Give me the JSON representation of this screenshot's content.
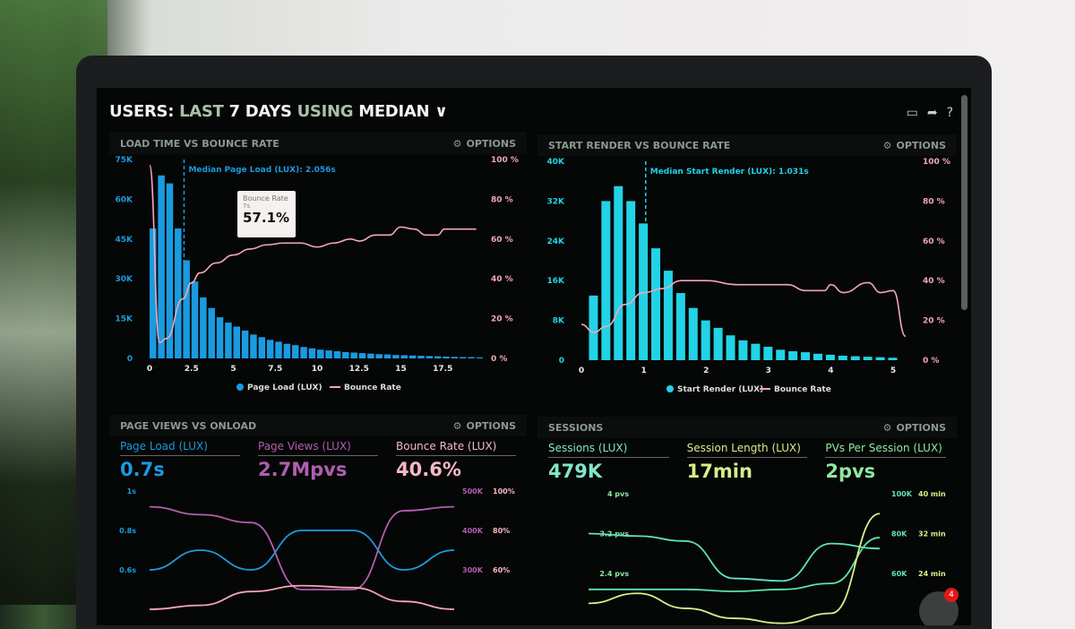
{
  "header": {
    "title_parts": [
      "USERS:",
      "LAST",
      "7 DAYS",
      "USING",
      "MEDIAN"
    ],
    "dropdown_icon": "chevron-down-icon",
    "icons": [
      "monitor-icon",
      "share-icon",
      "help-icon"
    ]
  },
  "options_label": "OPTIONS",
  "colors": {
    "blue": "#1a9be0",
    "cyan": "#22d3e6",
    "pink": "#f2a7b8",
    "purple": "#b05fae",
    "teal": "#5fe3c0",
    "yellow": "#d8ee8a",
    "green": "#8ee8a0"
  },
  "panels": {
    "load": {
      "title": "LOAD TIME VS BOUNCE RATE"
    },
    "render": {
      "title": "START RENDER VS BOUNCE RATE"
    },
    "views": {
      "title": "PAGE VIEWS VS ONLOAD",
      "kpis": [
        {
          "label": "Page Load (LUX)",
          "value": "0.7s"
        },
        {
          "label": "Page Views (LUX)",
          "value": "2.7Mpvs"
        },
        {
          "label": "Bounce Rate (LUX)",
          "value": "40.6%"
        }
      ]
    },
    "sessions": {
      "title": "SESSIONS",
      "kpis": [
        {
          "label": "Sessions (LUX)",
          "value": "479K"
        },
        {
          "label": "Session Length (LUX)",
          "value": "17min"
        },
        {
          "label": "PVs Per Session (LUX)",
          "value": "2pvs"
        }
      ]
    }
  },
  "tooltip": {
    "title": "Bounce Rate",
    "sub": "7s",
    "value": "57.1%"
  },
  "notification_count": "4",
  "chart_data": [
    {
      "type": "bar",
      "name": "load",
      "x": [
        0,
        0.5,
        1,
        1.5,
        2,
        2.5,
        3,
        3.5,
        4,
        4.5,
        5,
        5.5,
        6,
        6.5,
        7,
        7.5,
        8,
        8.5,
        9,
        9.5,
        10,
        10.5,
        11,
        11.5,
        12,
        12.5,
        13,
        13.5,
        14,
        14.5,
        15,
        15.5,
        16,
        16.5,
        17,
        17.5,
        18,
        18.5,
        19,
        19.5
      ],
      "series": [
        {
          "name": "Page Load (LUX)",
          "axis": "left",
          "type": "bar",
          "values": [
            49000,
            69000,
            66000,
            49000,
            37000,
            29000,
            23000,
            19000,
            15500,
            13500,
            12000,
            10500,
            9000,
            8000,
            7000,
            6300,
            5500,
            5000,
            4300,
            3800,
            3300,
            3000,
            2700,
            2400,
            2200,
            2000,
            1800,
            1600,
            1500,
            1300,
            1200,
            1100,
            1000,
            900,
            800,
            700,
            600,
            500,
            500,
            400
          ]
        },
        {
          "name": "Bounce Rate",
          "axis": "right",
          "type": "line",
          "points": [
            [
              0,
              97
            ],
            [
              0.6,
              8
            ],
            [
              1,
              10
            ],
            [
              2,
              30
            ],
            [
              2.5,
              38
            ],
            [
              3,
              43
            ],
            [
              4,
              48
            ],
            [
              5,
              52
            ],
            [
              6,
              55
            ],
            [
              7,
              57.1
            ],
            [
              8,
              58
            ],
            [
              9,
              58
            ],
            [
              10,
              56
            ],
            [
              11,
              58
            ],
            [
              12,
              60
            ],
            [
              12.5,
              59
            ],
            [
              13.5,
              62
            ],
            [
              14.3,
              62
            ],
            [
              15,
              66
            ],
            [
              15.8,
              65
            ],
            [
              16.5,
              62
            ],
            [
              17.2,
              62
            ],
            [
              17.6,
              65
            ],
            [
              18.5,
              65
            ],
            [
              19.5,
              65
            ]
          ]
        }
      ],
      "xticks": [
        "0",
        "2.5",
        "5",
        "7.5",
        "10",
        "12.5",
        "15",
        "17.5"
      ],
      "yticks_left": [
        "0",
        "15K",
        "30K",
        "45K",
        "60K",
        "75K"
      ],
      "yticks_right": [
        "0 %",
        "20 %",
        "40 %",
        "60 %",
        "80 %",
        "100 %"
      ],
      "ylim_left": [
        0,
        75000
      ],
      "ylim_right": [
        0,
        100
      ],
      "annotation": "Median Page Load (LUX): 2.056s",
      "median": 2.056,
      "legend": [
        "Page Load (LUX)",
        "Bounce Rate"
      ]
    },
    {
      "type": "bar",
      "name": "render",
      "x": [
        0.2,
        0.4,
        0.6,
        0.8,
        1,
        1.2,
        1.4,
        1.6,
        1.8,
        2,
        2.2,
        2.4,
        2.6,
        2.8,
        3,
        3.2,
        3.4,
        3.6,
        3.8,
        4,
        4.2,
        4.4,
        4.6,
        4.8,
        5
      ],
      "series": [
        {
          "name": "Start Render (LUX)",
          "axis": "left",
          "type": "bar",
          "values": [
            13000,
            32000,
            35000,
            32000,
            27500,
            22500,
            18000,
            13500,
            10500,
            8000,
            6500,
            5000,
            4000,
            3300,
            2700,
            2100,
            1800,
            1600,
            1300,
            1100,
            900,
            800,
            700,
            600,
            500
          ]
        },
        {
          "name": "Bounce Rate",
          "axis": "right",
          "type": "line",
          "points": [
            [
              0,
              18
            ],
            [
              0.2,
              14
            ],
            [
              0.4,
              17
            ],
            [
              0.7,
              28
            ],
            [
              1,
              34
            ],
            [
              1.3,
              36
            ],
            [
              1.6,
              40
            ],
            [
              2,
              40
            ],
            [
              2.5,
              38
            ],
            [
              3,
              38
            ],
            [
              3.3,
              38
            ],
            [
              3.6,
              35
            ],
            [
              3.9,
              35
            ],
            [
              4,
              38
            ],
            [
              4.2,
              34
            ],
            [
              4.6,
              39
            ],
            [
              4.8,
              34
            ],
            [
              5,
              35
            ],
            [
              5.2,
              12
            ]
          ]
        }
      ],
      "xticks": [
        "0",
        "1",
        "2",
        "3",
        "4",
        "5"
      ],
      "yticks_left": [
        "0",
        "8K",
        "16K",
        "24K",
        "32K",
        "40K"
      ],
      "yticks_right": [
        "0 %",
        "20 %",
        "40 %",
        "60 %",
        "80 %",
        "100 %"
      ],
      "ylim_left": [
        0,
        40000
      ],
      "ylim_right": [
        0,
        100
      ],
      "annotation": "Median Start Render (LUX): 1.031s",
      "median": 1.031,
      "legend": [
        "Start Render (LUX)",
        "Bounce Rate"
      ]
    },
    {
      "type": "line",
      "name": "views",
      "series": [
        {
          "name": "Page Load (LUX)",
          "values": [
            0.6,
            0.7,
            0.6,
            0.8,
            0.8,
            0.6,
            0.7
          ]
        },
        {
          "name": "Page Views (LUX)",
          "values": [
            460000,
            440000,
            420000,
            250000,
            250000,
            450000,
            460000
          ]
        },
        {
          "name": "Bounce Rate (LUX)",
          "values": [
            40,
            42,
            49,
            52,
            51,
            44,
            40
          ]
        }
      ],
      "yticks_left": [
        "1s",
        "0.8s",
        "0.6s"
      ],
      "yticks_right1": [
        "500K",
        "400K",
        "300K"
      ],
      "yticks_right2": [
        "100%",
        "80%",
        "60%"
      ]
    },
    {
      "type": "line",
      "name": "sessions",
      "series": [
        {
          "name": "PVs Per Session (LUX)",
          "values": [
            3.2,
            3.15,
            3.05,
            2.3,
            2.25,
            3.0,
            2.9
          ]
        },
        {
          "name": "Sessions (LUX)",
          "values": [
            52000,
            52000,
            52000,
            51000,
            52000,
            55000,
            78000
          ]
        },
        {
          "name": "Session Length (LUX)",
          "values": [
            18,
            20,
            17,
            15,
            14,
            16,
            36
          ]
        }
      ],
      "yticks_left": [
        "4 pvs",
        "3.2 pvs",
        "2.4 pvs"
      ],
      "yticks_right1": [
        "100K",
        "80K",
        "60K"
      ],
      "yticks_right2": [
        "40 min",
        "32 min",
        "24 min"
      ]
    }
  ]
}
